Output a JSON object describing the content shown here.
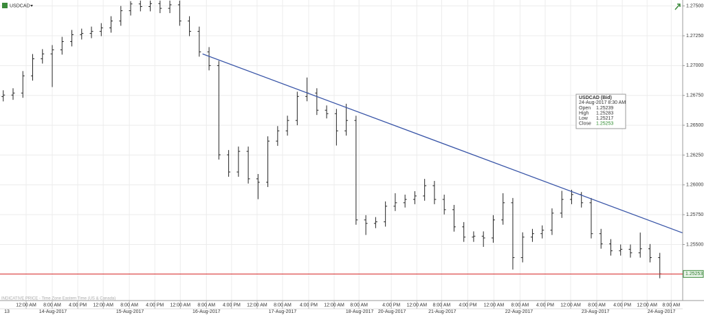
{
  "chart_data": {
    "type": "ohlc",
    "symbol": "USDCAD",
    "footnote": "INDICATIVE PRICE - Time Zone Eastern Time (US & Canada)",
    "color": "#222222",
    "x": [
      1,
      4,
      7,
      10,
      13,
      16,
      19,
      22,
      25,
      28,
      31,
      34,
      37,
      40,
      43,
      46,
      49,
      52,
      55,
      58,
      61,
      64,
      67,
      70,
      73,
      76,
      79,
      82,
      85,
      88,
      91,
      94,
      97,
      100,
      103,
      106,
      109,
      112,
      115,
      118,
      121,
      124,
      127,
      130,
      133,
      136,
      139,
      142,
      145,
      148,
      151,
      154,
      157,
      160,
      163,
      166,
      169,
      172,
      175,
      178,
      181,
      184,
      187,
      190,
      193,
      196,
      199,
      202
    ],
    "open": [
      1.2674,
      1.26753,
      1.2677,
      1.26914,
      1.27057,
      1.27098,
      1.27132,
      1.27201,
      1.27259,
      1.2727,
      1.27287,
      1.27316,
      1.27374,
      1.2746,
      1.27517,
      1.27495,
      1.2752,
      1.2748,
      1.2751,
      1.27374,
      1.27287,
      1.27115,
      1.27,
      1.26252,
      1.26108,
      1.26281,
      1.26051,
      1.26022,
      1.26367,
      1.26453,
      1.2654,
      1.26741,
      1.2677,
      1.26626,
      1.26597,
      1.26453,
      1.2654,
      1.25706,
      1.25677,
      1.2569,
      1.25821,
      1.2585,
      1.25878,
      1.25907,
      1.25993,
      1.25878,
      1.25792,
      1.25648,
      1.25562,
      1.2557,
      1.25555,
      1.25706,
      1.2585,
      1.2539,
      1.25562,
      1.25591,
      1.2562,
      1.25763,
      1.25878,
      1.25919,
      1.2585,
      1.25591,
      1.25505,
      1.25447,
      1.2546,
      1.2543,
      1.25464,
      1.2539
    ],
    "high": [
      1.26793,
      1.2681,
      1.26954,
      1.27097,
      1.27138,
      1.27172,
      1.27241,
      1.27299,
      1.2731,
      1.27327,
      1.27356,
      1.27414,
      1.275,
      1.2754,
      1.27545,
      1.27545,
      1.27545,
      1.27545,
      1.27545,
      1.27414,
      1.27327,
      1.27155,
      1.2704,
      1.26292,
      1.26321,
      1.26321,
      1.26091,
      1.26407,
      1.26493,
      1.2658,
      1.26781,
      1.269,
      1.2681,
      1.26666,
      1.26637,
      1.2668,
      1.2658,
      1.25746,
      1.2573,
      1.25861,
      1.2593,
      1.25918,
      1.25947,
      1.2605,
      1.26033,
      1.25918,
      1.25832,
      1.25688,
      1.2561,
      1.2561,
      1.25746,
      1.2593,
      1.2589,
      1.25602,
      1.25631,
      1.2566,
      1.25803,
      1.2595,
      1.25959,
      1.2594,
      1.2589,
      1.25631,
      1.25545,
      1.255,
      1.255,
      1.256,
      1.25504,
      1.2543
    ],
    "low": [
      1.267,
      1.26713,
      1.2673,
      1.26874,
      1.27017,
      1.2682,
      1.27092,
      1.27161,
      1.27219,
      1.2723,
      1.27247,
      1.27276,
      1.27334,
      1.2742,
      1.27455,
      1.27455,
      1.2744,
      1.2744,
      1.27334,
      1.27247,
      1.27075,
      1.2696,
      1.26212,
      1.26068,
      1.26068,
      1.26011,
      1.2588,
      1.25982,
      1.26327,
      1.26413,
      1.265,
      1.26701,
      1.26586,
      1.26557,
      1.2633,
      1.26413,
      1.25666,
      1.2558,
      1.25637,
      1.2565,
      1.25781,
      1.2581,
      1.25838,
      1.25867,
      1.25838,
      1.25752,
      1.25608,
      1.25522,
      1.25522,
      1.2548,
      1.25515,
      1.25666,
      1.2529,
      1.2535,
      1.25522,
      1.25551,
      1.2558,
      1.25723,
      1.25838,
      1.2581,
      1.25551,
      1.25465,
      1.25407,
      1.25407,
      1.2539,
      1.2539,
      1.2535,
      1.25217
    ],
    "close": [
      1.26753,
      1.2677,
      1.26914,
      1.27057,
      1.27098,
      1.27132,
      1.27201,
      1.27259,
      1.2727,
      1.27287,
      1.27316,
      1.27374,
      1.2746,
      1.27517,
      1.27495,
      1.2752,
      1.2748,
      1.2751,
      1.27374,
      1.27287,
      1.27115,
      1.27,
      1.26252,
      1.26108,
      1.26281,
      1.26051,
      1.26022,
      1.26367,
      1.26453,
      1.2654,
      1.26741,
      1.2677,
      1.26626,
      1.26597,
      1.26453,
      1.2654,
      1.25706,
      1.25677,
      1.2569,
      1.25821,
      1.2585,
      1.25878,
      1.25907,
      1.25993,
      1.25878,
      1.25792,
      1.25648,
      1.25562,
      1.2557,
      1.25555,
      1.25706,
      1.2585,
      1.2539,
      1.25562,
      1.25591,
      1.2562,
      1.25763,
      1.25878,
      1.25919,
      1.2585,
      1.25591,
      1.25505,
      1.25447,
      1.2546,
      1.2543,
      1.25464,
      1.2539,
      1.25253
    ],
    "trendline": {
      "color": "#3a56a8",
      "x": [
        62,
        209
      ],
      "y": [
        1.27098,
        1.25597
      ]
    },
    "last_price": {
      "value": 1.25253,
      "label": "1.25253",
      "color": "#d42020"
    },
    "xlim": [
      0,
      209
    ],
    "ylim": [
      1.2503,
      1.2755
    ],
    "yticks": [
      {
        "value": 1.275,
        "label": "1.27500"
      },
      {
        "value": 1.2725,
        "label": "1.27250"
      },
      {
        "value": 1.27,
        "label": "1.27000"
      },
      {
        "value": 1.2675,
        "label": "1.26750"
      },
      {
        "value": 1.265,
        "label": "1.26500"
      },
      {
        "value": 1.2625,
        "label": "1.26250"
      },
      {
        "value": 1.26,
        "label": "1.26000"
      },
      {
        "value": 1.2575,
        "label": "1.25750"
      },
      {
        "value": 1.255,
        "label": "1.25500"
      }
    ],
    "xticks": [
      {
        "value": 8,
        "label": "12:00 AM"
      },
      {
        "value": 16,
        "label": "8:00 AM"
      },
      {
        "value": 23.8,
        "label": "4:00 PM"
      },
      {
        "value": 31.6,
        "label": "12:00 AM"
      },
      {
        "value": 39.6,
        "label": "8:00 AM"
      },
      {
        "value": 47.4,
        "label": "4:00 PM"
      },
      {
        "value": 55.2,
        "label": "12:00 AM"
      },
      {
        "value": 63.2,
        "label": "8:00 AM"
      },
      {
        "value": 70.9,
        "label": "4:00 PM"
      },
      {
        "value": 78.7,
        "label": "12:00 AM"
      },
      {
        "value": 86.5,
        "label": "8:00 AM"
      },
      {
        "value": 94.5,
        "label": "4:00 PM"
      },
      {
        "value": 102.3,
        "label": "12:00 AM"
      },
      {
        "value": 109.9,
        "label": "8:00 AM"
      },
      {
        "value": 119.8,
        "label": "4:00 PM"
      },
      {
        "value": 127.6,
        "label": "12:00 AM"
      },
      {
        "value": 135.2,
        "label": "8:00 AM"
      },
      {
        "value": 143.2,
        "label": "4:00 PM"
      },
      {
        "value": 151.2,
        "label": "12:00 AM"
      },
      {
        "value": 159.2,
        "label": "8:00 AM"
      },
      {
        "value": 166.9,
        "label": "4:00 PM"
      },
      {
        "value": 174.7,
        "label": "12:00 AM"
      },
      {
        "value": 182.7,
        "label": "8:00 AM"
      },
      {
        "value": 190.5,
        "label": "4:00 PM"
      },
      {
        "value": 198.1,
        "label": "12:00 AM"
      },
      {
        "value": 205.5,
        "label": "8:00 AM"
      }
    ],
    "dates": [
      {
        "value": 2.1,
        "label": "13"
      },
      {
        "value": 16.2,
        "label": "14-Aug-2017"
      },
      {
        "value": 39.8,
        "label": "15-Aug-2017"
      },
      {
        "value": 63.2,
        "label": "16-Aug-2017"
      },
      {
        "value": 86.5,
        "label": "17-Aug-2017"
      },
      {
        "value": 110.1,
        "label": "18-Aug-2017"
      },
      {
        "value": 120,
        "label": "20-Aug-2017"
      },
      {
        "value": 135.4,
        "label": "21-Aug-2017"
      },
      {
        "value": 158.9,
        "label": "22-Aug-2017"
      },
      {
        "value": 182.3,
        "label": "23-Aug-2017"
      },
      {
        "value": 202.5,
        "label": "24-Aug-2017"
      }
    ],
    "tooltip": {
      "title": "USDCAD (Bid)",
      "time": "24-Aug-2017 8:30 AM",
      "rows": [
        {
          "name": "Open",
          "value": 1.25239
        },
        {
          "name": "High",
          "value": 1.25283
        },
        {
          "name": "Low",
          "value": 1.25217
        },
        {
          "name": "Close",
          "value": 1.25253
        }
      ]
    }
  }
}
